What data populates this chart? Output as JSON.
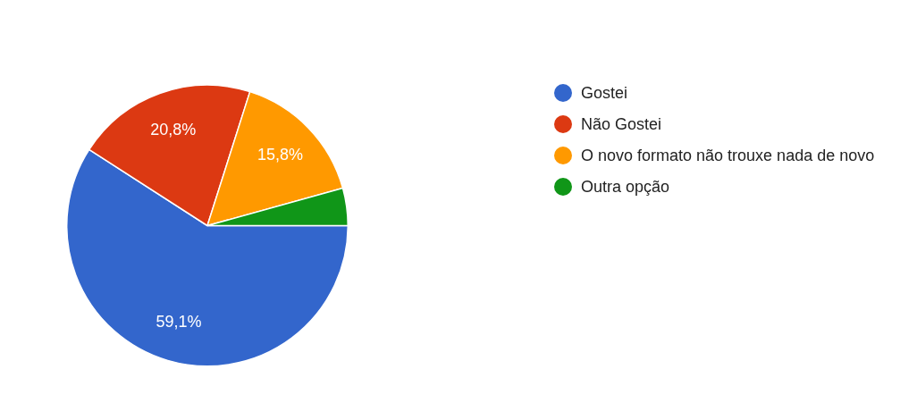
{
  "chart_data": {
    "type": "pie",
    "categories": [
      "Gostei",
      "Não Gostei",
      "O novo formato não trouxe nada de novo",
      "Outra opção"
    ],
    "values": [
      59.1,
      20.8,
      15.8,
      4.3
    ],
    "colors": [
      "#3366cc",
      "#dc3912",
      "#ff9900",
      "#109618"
    ],
    "value_labels": [
      "59,1%",
      "20,8%",
      "15,8%",
      null
    ],
    "legend": "right"
  }
}
